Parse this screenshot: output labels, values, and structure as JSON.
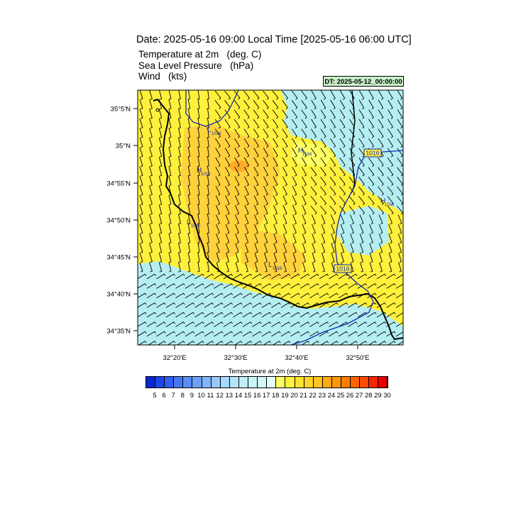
{
  "title": "Date: 2025-05-16  09:00 Local Time [2025-05-16  06:00 UTC]",
  "subtitles": [
    "Temperature at 2m   (deg. C)",
    "Sea Level Pressure   (hPa)",
    "Wind   (kts)"
  ],
  "dt_label": "DT: 2025-05-12_00:00:00",
  "lat_ticks": [
    "35°5'N",
    "35°N",
    "34°55'N",
    "34°50'N",
    "34°45'N",
    "34°40'N",
    "34°35'N"
  ],
  "lon_ticks": [
    "32°20'E",
    "32°30'E",
    "32°40'E",
    "32°50'E"
  ],
  "isobar_labels": [
    "1016",
    "1016"
  ],
  "pressure_centers": [
    {
      "type": "L",
      "value": "1016"
    },
    {
      "type": "H",
      "value": "1016"
    },
    {
      "type": "H",
      "value": "1016"
    },
    {
      "type": "L",
      "value": "1016"
    },
    {
      "type": "L",
      "value": "1016"
    },
    {
      "type": "H",
      "value": "1016"
    }
  ],
  "colorbar": {
    "title": "Temperature at 2m  (deg. C)",
    "labels": [
      "5",
      "6",
      "7",
      "8",
      "9",
      "10",
      "11",
      "12",
      "13",
      "14",
      "15",
      "16",
      "17",
      "18",
      "19",
      "20",
      "21",
      "22",
      "23",
      "24",
      "25",
      "26",
      "27",
      "28",
      "29",
      "30"
    ],
    "colors": [
      "#0a28d2",
      "#1e46e6",
      "#325ff0",
      "#4678f5",
      "#5a8cf8",
      "#6ea0fa",
      "#82b4fb",
      "#96c8fc",
      "#a5d8fc",
      "#b4e4fc",
      "#bfeefb",
      "#c8f5fa",
      "#d2f8f8",
      "#e4fcfc",
      "#ffff64",
      "#fff03c",
      "#ffe132",
      "#ffd228",
      "#ffc31e",
      "#ffaa14",
      "#ff960a",
      "#ff7d00",
      "#ff6400",
      "#ff4b00",
      "#fa2800",
      "#e60000"
    ]
  },
  "colors": {
    "cool_fill": "#b4eef2",
    "warm_fill": "#fff03c",
    "warmer_fill": "#ffd23c",
    "hot_spot": "#ffaa28",
    "isobar": "#1428b4",
    "coast": "#000000"
  }
}
